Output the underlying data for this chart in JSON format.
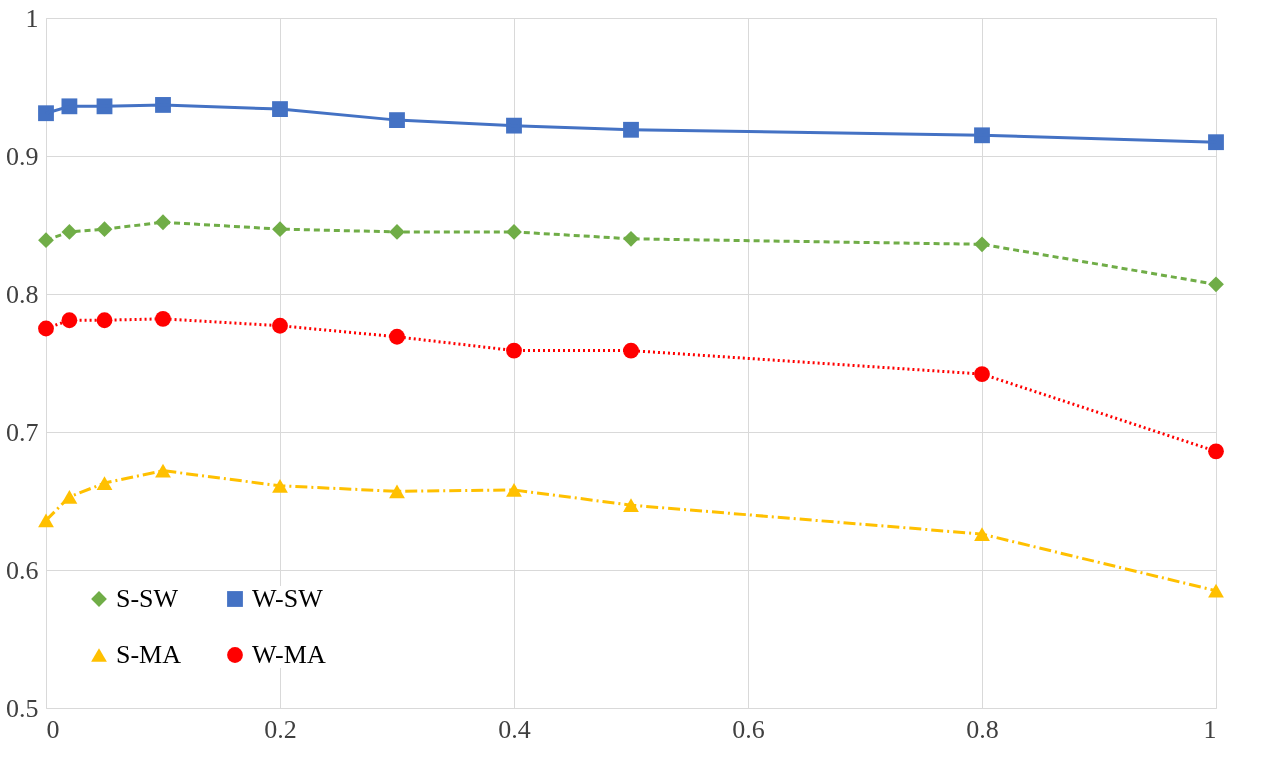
{
  "chart_data": {
    "type": "line",
    "x": [
      0,
      0.02,
      0.05,
      0.1,
      0.2,
      0.3,
      0.4,
      0.5,
      0.8,
      1
    ],
    "series": [
      {
        "name": "S-SW",
        "color": "#70ad47",
        "marker": "diamond",
        "line_style": "dashed",
        "values": [
          0.839,
          0.845,
          0.847,
          0.852,
          0.847,
          0.845,
          0.845,
          0.84,
          0.836,
          0.807
        ]
      },
      {
        "name": "S-MA",
        "color": "#ffc000",
        "marker": "triangle",
        "line_style": "dashdot",
        "values": [
          0.636,
          0.653,
          0.663,
          0.672,
          0.661,
          0.657,
          0.658,
          0.647,
          0.626,
          0.585
        ]
      },
      {
        "name": "W-SW",
        "color": "#4472c4",
        "marker": "square",
        "line_style": "solid",
        "values": [
          0.931,
          0.936,
          0.936,
          0.937,
          0.934,
          0.926,
          0.922,
          0.919,
          0.915,
          0.91
        ]
      },
      {
        "name": "W-MA",
        "color": "#ff0000",
        "marker": "circle",
        "line_style": "dotted",
        "values": [
          0.775,
          0.781,
          0.781,
          0.782,
          0.777,
          0.769,
          0.759,
          0.759,
          0.742,
          0.686
        ]
      }
    ],
    "xlim": [
      0,
      1
    ],
    "xticks": [
      0,
      0.2,
      0.4,
      0.6,
      0.8,
      1
    ],
    "ylim": [
      0.5,
      1
    ],
    "yticks": [
      0.5,
      0.6,
      0.7,
      0.8,
      0.9,
      1
    ],
    "grid": true,
    "legend": "bottom left"
  }
}
